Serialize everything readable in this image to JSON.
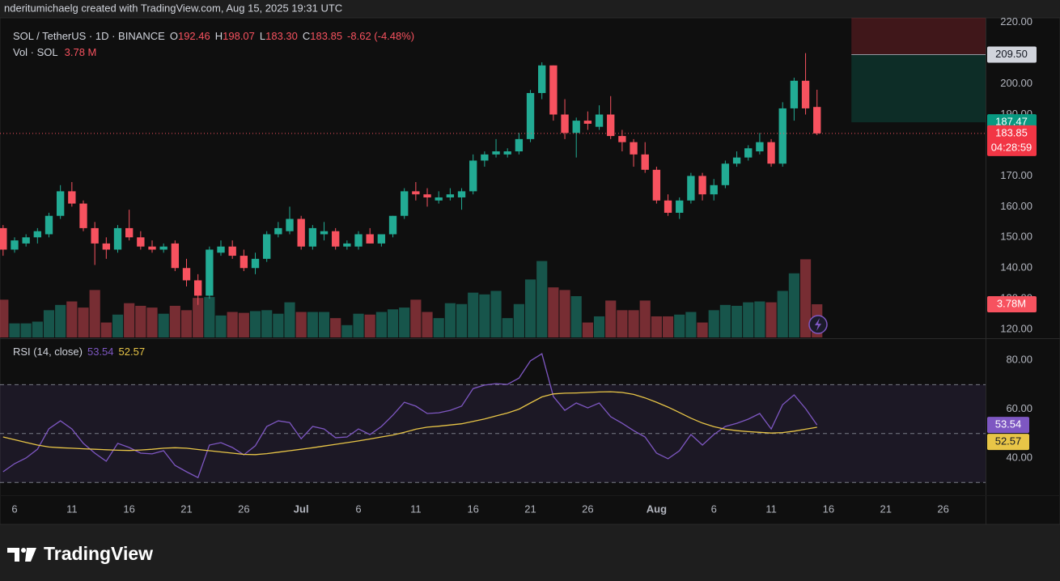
{
  "header": {
    "text": "nderitumichaelg created with TradingView.com, Aug 15, 2025 19:31 UTC"
  },
  "footer": {
    "brand": "TradingView"
  },
  "chart_data": [
    {
      "type": "candlestick",
      "title": "SOL / TetherUS · 1D · BINANCE",
      "ohlc_legend": [
        {
          "key": "O",
          "label": "192.46"
        },
        {
          "key": "H",
          "label": "198.07"
        },
        {
          "key": "L",
          "label": "183.30"
        },
        {
          "key": "C",
          "label": "183.85"
        }
      ],
      "change": "-8.62 (-4.48%)",
      "up_color": "#22ab94",
      "down_color": "#f7525f",
      "categories": [
        "Jun 5",
        "Jun 6",
        "Jun 7",
        "Jun 8",
        "Jun 9",
        "Jun 10",
        "Jun 11",
        "Jun 12",
        "Jun 13",
        "Jun 14",
        "Jun 15",
        "Jun 16",
        "Jun 17",
        "Jun 18",
        "Jun 19",
        "Jun 20",
        "Jun 21",
        "Jun 22",
        "Jun 23",
        "Jun 24",
        "Jun 25",
        "Jun 26",
        "Jun 27",
        "Jun 28",
        "Jun 29",
        "Jun 30",
        "Jul 1",
        "Jul 2",
        "Jul 3",
        "Jul 4",
        "Jul 5",
        "Jul 6",
        "Jul 7",
        "Jul 8",
        "Jul 9",
        "Jul 10",
        "Jul 11",
        "Jul 12",
        "Jul 13",
        "Jul 14",
        "Jul 15",
        "Jul 16",
        "Jul 17",
        "Jul 18",
        "Jul 19",
        "Jul 20",
        "Jul 21",
        "Jul 22",
        "Jul 23",
        "Jul 24",
        "Jul 25",
        "Jul 26",
        "Jul 27",
        "Jul 28",
        "Jul 29",
        "Jul 30",
        "Jul 31",
        "Aug 1",
        "Aug 2",
        "Aug 3",
        "Aug 4",
        "Aug 5",
        "Aug 6",
        "Aug 7",
        "Aug 8",
        "Aug 9",
        "Aug 10",
        "Aug 11",
        "Aug 12",
        "Aug 13",
        "Aug 14",
        "Aug 15"
      ],
      "open": [
        153,
        146,
        148,
        150,
        151,
        157,
        165,
        161,
        153,
        148,
        146,
        153,
        150,
        147,
        146,
        148,
        140,
        136,
        131,
        145,
        147,
        144,
        140,
        143,
        151,
        152,
        156,
        147,
        151,
        152,
        147,
        147,
        151,
        148,
        151,
        157,
        165,
        164,
        162,
        163,
        163,
        165,
        175,
        177,
        177,
        178,
        182,
        197,
        206,
        190,
        184,
        188,
        186,
        190,
        183,
        181,
        177,
        172,
        162,
        158,
        162,
        170,
        164,
        167,
        174,
        176,
        178,
        181,
        174,
        192,
        201,
        192.46
      ],
      "high": [
        154,
        150,
        151,
        153,
        158,
        167,
        168,
        162,
        155,
        150,
        154,
        159,
        152,
        149,
        148,
        149,
        143,
        138,
        147,
        149,
        149,
        146,
        145,
        152,
        155,
        160,
        157,
        154,
        155,
        153,
        149,
        152,
        153,
        151,
        157,
        166,
        168,
        166,
        165,
        166,
        166,
        177,
        178,
        182,
        179,
        184,
        198,
        207,
        206,
        195,
        189,
        191,
        193,
        196,
        185,
        182,
        181,
        173,
        164,
        163,
        171,
        171,
        169,
        175,
        178,
        180,
        184,
        182,
        194,
        202,
        210,
        198.07
      ],
      "low": [
        144,
        145,
        147,
        148,
        150,
        156,
        160,
        152,
        141,
        143,
        145,
        149,
        146,
        145,
        145,
        139,
        134,
        128,
        130,
        144,
        143,
        139,
        138,
        142,
        150,
        151,
        146,
        146,
        149,
        146,
        146,
        146,
        148,
        147,
        150,
        156,
        162,
        160,
        161,
        162,
        159,
        164,
        173,
        176,
        176,
        177,
        181,
        195,
        188,
        182,
        176,
        185,
        185,
        182,
        178,
        173,
        171,
        161,
        157,
        156,
        161,
        162,
        162,
        166,
        173,
        175,
        177,
        173,
        173,
        188,
        190,
        183.3
      ],
      "close": [
        146,
        149,
        150,
        152,
        157,
        165,
        161,
        153,
        148,
        146,
        153,
        150,
        147,
        146,
        147,
        140,
        136,
        131,
        146,
        147,
        144,
        140,
        143,
        151,
        153,
        156,
        147,
        153,
        152,
        147,
        148,
        151,
        148,
        151,
        157,
        165,
        164,
        163,
        163,
        164,
        165,
        175,
        177,
        178,
        178,
        182,
        197,
        206,
        190,
        184,
        188,
        187,
        190,
        183,
        181,
        177,
        172,
        162,
        158,
        162,
        170,
        164,
        167,
        174,
        176,
        179,
        181,
        174,
        192,
        201,
        192,
        183.85
      ],
      "volume": {
        "title": "Vol · SOL",
        "legend_label": "3.78 M",
        "axis_label": "3.78M",
        "ylim": [
          0,
          36.4
        ],
        "values": [
          4.3,
          1.6,
          1.6,
          1.8,
          3.1,
          3.7,
          4.1,
          3.4,
          5.4,
          1.7,
          2.6,
          3.9,
          3.6,
          3.4,
          2.7,
          3.6,
          3.1,
          4.5,
          4.6,
          2.5,
          2.9,
          2.8,
          3.0,
          3.1,
          2.7,
          4.0,
          2.9,
          2.9,
          2.9,
          2.2,
          1.4,
          2.7,
          2.6,
          2.9,
          3.2,
          3.4,
          4.3,
          2.9,
          2.2,
          3.9,
          3.8,
          5.1,
          4.9,
          5.3,
          2.2,
          3.8,
          6.6,
          8.7,
          5.7,
          5.4,
          4.7,
          1.7,
          2.4,
          4.2,
          3.1,
          3.1,
          4.2,
          2.4,
          2.4,
          2.6,
          2.9,
          1.7,
          3.1,
          3.7,
          3.6,
          4.0,
          4.1,
          4.0,
          5.3,
          7.3,
          8.9,
          3.78
        ]
      },
      "ylim": [
        117.4,
        221.5
      ],
      "yticks": [
        {
          "value": 220,
          "label": "220.00"
        },
        {
          "value": 210,
          "label": "210.00"
        },
        {
          "value": 200,
          "label": "200.00"
        },
        {
          "value": 190,
          "label": "190.00"
        },
        {
          "value": 180,
          "label": "180.00"
        },
        {
          "value": 170,
          "label": "170.00"
        },
        {
          "value": 160,
          "label": "160.00"
        },
        {
          "value": 150,
          "label": "150.00"
        },
        {
          "value": 140,
          "label": "140.00"
        },
        {
          "value": 130,
          "label": "130.00"
        },
        {
          "value": 120,
          "label": "120.00"
        }
      ],
      "xlim": [
        -0.27,
        85.7
      ],
      "xticks": [
        {
          "value": 1,
          "label": "6"
        },
        {
          "value": 6,
          "label": "11"
        },
        {
          "value": 11,
          "label": "16"
        },
        {
          "value": 16,
          "label": "21"
        },
        {
          "value": 21,
          "label": "26"
        },
        {
          "value": 26,
          "label": "Jul"
        },
        {
          "value": 31,
          "label": "6"
        },
        {
          "value": 36,
          "label": "11"
        },
        {
          "value": 41,
          "label": "16"
        },
        {
          "value": 46,
          "label": "21"
        },
        {
          "value": 51,
          "label": "26"
        },
        {
          "value": 57,
          "label": "Aug"
        },
        {
          "value": 62,
          "label": "6"
        },
        {
          "value": 67,
          "label": "11"
        },
        {
          "value": 72,
          "label": "16"
        },
        {
          "value": 77,
          "label": "21"
        },
        {
          "value": 82,
          "label": "26"
        }
      ],
      "position": {
        "start": 74,
        "stop": 222,
        "entry": 209.5,
        "target": 187.47
      },
      "price_labels": [
        {
          "value": 209.5,
          "label": "209.50",
          "color": "#d1d4dc",
          "text_color": "#131722"
        },
        {
          "value": 187.47,
          "label": "187.47",
          "color": "#089981",
          "text_color": "#ffffff"
        },
        {
          "value": 183.85,
          "label": "183.85",
          "color": "#f23645",
          "text_color": "#ffffff",
          "countdown": "04:28:59"
        }
      ]
    },
    {
      "type": "line",
      "title": "RSI (14, close)",
      "series": [
        {
          "color": "#7e57c2",
          "values": [
            34.4,
            37.7,
            40,
            43.6,
            52,
            55.2,
            51.9,
            46,
            42,
            38.7,
            46,
            44.3,
            42,
            41.7,
            43,
            37,
            34.4,
            32,
            45.3,
            46.3,
            44.3,
            41.3,
            45,
            52.9,
            55.2,
            54.5,
            47.9,
            52.9,
            51.9,
            48.3,
            48.6,
            51.9,
            49.6,
            52.9,
            57.5,
            62.8,
            61.2,
            58.2,
            58.5,
            59.5,
            61.2,
            68.4,
            69.8,
            70.4,
            70.1,
            72.7,
            79.7,
            82.6,
            65.1,
            59.5,
            62.5,
            60.5,
            62.5,
            56.9,
            54.2,
            51.2,
            48.6,
            42,
            39.7,
            43,
            49.6,
            45.3,
            49.6,
            52.9,
            54.2,
            55.9,
            58.2,
            51.9,
            61.8,
            65.8,
            60.2,
            53.54
          ]
        },
        {
          "color": "#e8c547",
          "values": [
            48.6,
            47.5,
            46.4,
            45.3,
            44.5,
            44.2,
            44.0,
            43.8,
            43.6,
            43.4,
            43.2,
            43.1,
            43.3,
            43.6,
            44.0,
            44.2,
            44.0,
            43.5,
            43.0,
            42.5,
            42.0,
            41.5,
            41.4,
            41.8,
            42.4,
            43.0,
            43.6,
            44.2,
            44.9,
            45.6,
            46.3,
            47.0,
            47.8,
            48.6,
            49.4,
            50.5,
            51.8,
            52.6,
            53.0,
            53.5,
            54.0,
            55.0,
            56.0,
            57.2,
            58.4,
            60.0,
            62.5,
            65.0,
            66.2,
            66.5,
            66.6,
            66.8,
            67.0,
            67.1,
            66.8,
            66.0,
            64.6,
            62.8,
            60.8,
            58.6,
            56.3,
            54.3,
            52.8,
            51.8,
            51.2,
            50.8,
            50.5,
            50.2,
            50.4,
            51.0,
            51.8,
            52.57
          ]
        }
      ],
      "ylim": [
        24.8,
        88.3
      ],
      "yticks": [
        {
          "value": 80,
          "label": "80.00"
        },
        {
          "value": 60,
          "label": "60.00"
        },
        {
          "value": 40,
          "label": "40.00"
        }
      ],
      "levels": [
        70,
        50,
        30
      ]
    }
  ]
}
